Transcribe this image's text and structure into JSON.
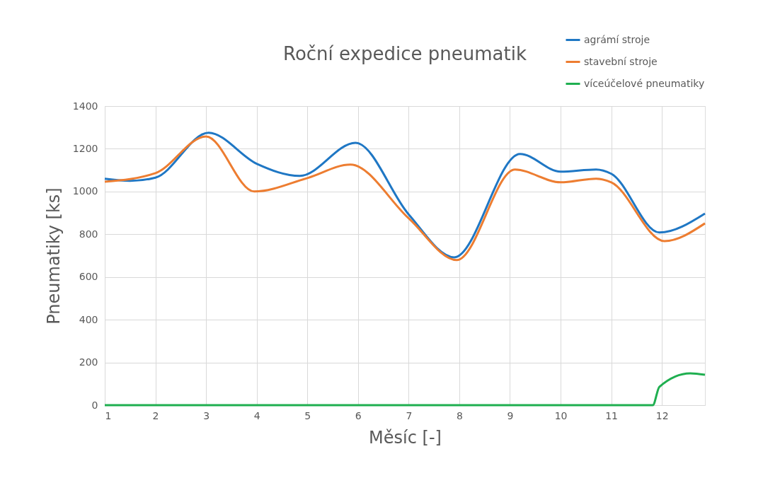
{
  "chart_data": {
    "type": "line",
    "title": "Roční expedice pneumatik",
    "xlabel": "Měsíc [-]",
    "ylabel": "Pneumatiky [ks]",
    "xlim": [
      1,
      12.85
    ],
    "xticks": [
      1,
      2,
      3,
      4,
      5,
      6,
      7,
      8,
      9,
      10,
      11,
      12
    ],
    "ylim": [
      0,
      1400
    ],
    "yticks": [
      0,
      200,
      400,
      600,
      800,
      1000,
      1200,
      1400
    ],
    "grid": true,
    "legend": "top right",
    "marker": "none",
    "line_style": "solid",
    "series": [
      {
        "name": "agrámí stroje",
        "color": "#1f77c4",
        "x": [
          1,
          1.5,
          2,
          3.05,
          4,
          4.85,
          5.95,
          7,
          7.9,
          9.2,
          10,
          10.7,
          11,
          11.95,
          12.85
        ],
        "values": [
          1060,
          1050,
          1065,
          1275,
          1130,
          1073,
          1228,
          893,
          692,
          1176,
          1093,
          1103,
          1083,
          808,
          897
        ]
      },
      {
        "name": "stavební stroje",
        "color": "#ed7d31",
        "x": [
          1,
          2,
          3,
          3.95,
          5,
          5.85,
          7,
          7.95,
          9.1,
          10,
          10.7,
          11,
          12.05,
          12.85
        ],
        "values": [
          1046,
          1086,
          1258,
          1000,
          1063,
          1126,
          875,
          679,
          1103,
          1043,
          1060,
          1043,
          768,
          851
        ]
      },
      {
        "name": "víceúčelové pneumatiky",
        "color": "#1faf50",
        "x": [
          1,
          11,
          11.82,
          11.95,
          12.56,
          12.85
        ],
        "values": [
          0,
          0,
          0,
          86,
          149,
          142
        ]
      }
    ]
  }
}
